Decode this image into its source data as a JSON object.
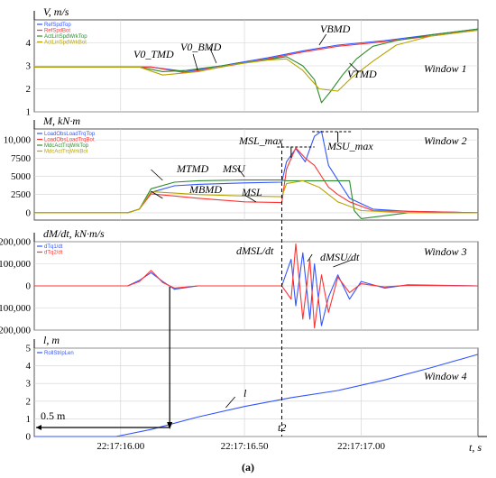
{
  "chart_data": [
    {
      "type": "line",
      "window": "Window 1",
      "ylabel": "V, m/s",
      "ylim": [
        1,
        5
      ],
      "yticks": [
        "1",
        "2",
        "3",
        "4"
      ],
      "legend": [
        {
          "name": "RefSpdTop",
          "color": "#3355ff"
        },
        {
          "name": "RefSpdBot",
          "color": "#ff3333"
        },
        {
          "name": "ActLinSpdWrkTop",
          "color": "#2e8b2e"
        },
        {
          "name": "ActLinSpdWrkBot",
          "color": "#b8a400"
        }
      ],
      "annotations": [
        "V0_TMD",
        "V0_BMD",
        "VBMD",
        "VTMD"
      ],
      "series": [
        {
          "color": "#3355ff",
          "x": [
            15.6,
            16.1,
            16.25,
            16.4,
            16.6,
            16.75,
            16.9,
            17.1,
            17.3,
            17.5
          ],
          "values": [
            2.95,
            2.95,
            2.75,
            3.0,
            3.35,
            3.65,
            3.9,
            4.1,
            4.35,
            4.6
          ]
        },
        {
          "color": "#ff3333",
          "x": [
            15.6,
            16.1,
            16.25,
            16.4,
            16.6,
            16.75,
            16.9,
            17.1,
            17.3,
            17.5
          ],
          "values": [
            2.95,
            2.95,
            2.7,
            2.95,
            3.3,
            3.6,
            3.85,
            4.05,
            4.3,
            4.55
          ]
        },
        {
          "color": "#2e8b2e",
          "x": [
            15.6,
            16.05,
            16.15,
            16.25,
            16.4,
            16.55,
            16.68,
            16.75,
            16.8,
            16.83,
            16.87,
            16.92,
            16.98,
            17.05,
            17.15,
            17.3,
            17.5
          ],
          "values": [
            2.95,
            2.95,
            2.75,
            2.8,
            3.0,
            3.2,
            3.4,
            3.0,
            2.4,
            1.4,
            1.9,
            2.6,
            3.3,
            3.85,
            4.1,
            4.35,
            4.6
          ]
        },
        {
          "color": "#b8a400",
          "x": [
            15.6,
            16.05,
            16.15,
            16.3,
            16.45,
            16.6,
            16.68,
            16.75,
            16.82,
            16.9,
            16.96,
            17.05,
            17.15,
            17.3,
            17.5
          ],
          "values": [
            2.95,
            2.95,
            2.6,
            2.75,
            3.05,
            3.25,
            3.3,
            2.8,
            2.0,
            1.9,
            2.5,
            3.2,
            3.9,
            4.3,
            4.55
          ]
        }
      ]
    },
    {
      "type": "line",
      "window": "Window 2",
      "ylabel": "M, kN·m",
      "ylim": [
        -1000,
        11500
      ],
      "yticks": [
        "0",
        "2500",
        "5000",
        "7500",
        "10,000"
      ],
      "legend": [
        {
          "name": "LoadObsLoadTrqTop",
          "color": "#3355ff"
        },
        {
          "name": "LoadObsLoadTrqBot",
          "color": "#ff3333"
        },
        {
          "name": "MdcActTrqWrkTop",
          "color": "#2e8b2e"
        },
        {
          "name": "MdcActTrqWrkBot",
          "color": "#b8a400"
        }
      ],
      "annotations": [
        "MSL_max",
        "MSU_max",
        "MTMD",
        "MSU",
        "MBMD",
        "MSL"
      ],
      "series": [
        {
          "color": "#3355ff",
          "x": [
            15.6,
            16.0,
            16.05,
            16.1,
            16.2,
            16.3,
            16.5,
            16.66,
            16.68,
            16.72,
            16.76,
            16.8,
            16.83,
            16.86,
            16.9,
            16.95,
            17.05,
            17.2,
            17.35,
            17.5
          ],
          "values": [
            0,
            0,
            500,
            2800,
            3700,
            3900,
            4100,
            4200,
            7000,
            8800,
            7000,
            10500,
            11200,
            6500,
            4500,
            2000,
            500,
            200,
            100,
            0
          ]
        },
        {
          "color": "#ff3333",
          "x": [
            15.6,
            16.0,
            16.05,
            16.1,
            16.2,
            16.3,
            16.5,
            16.66,
            16.68,
            16.72,
            16.76,
            16.8,
            16.83,
            16.86,
            16.9,
            16.95,
            17.05,
            17.2,
            17.35,
            17.5
          ],
          "values": [
            0,
            0,
            500,
            2600,
            2300,
            2000,
            1500,
            1400,
            6000,
            8900,
            7500,
            6500,
            5000,
            3500,
            2500,
            1500,
            300,
            200,
            100,
            0
          ]
        },
        {
          "color": "#2e8b2e",
          "x": [
            15.6,
            16.0,
            16.05,
            16.1,
            16.2,
            16.3,
            16.5,
            16.66,
            16.68,
            16.8,
            16.95,
            16.97,
            17.0,
            17.2,
            17.5
          ],
          "values": [
            0,
            0,
            500,
            3300,
            4200,
            4400,
            4500,
            4500,
            4400,
            4400,
            4400,
            300,
            -800,
            0,
            0
          ]
        },
        {
          "color": "#b8a400",
          "x": [
            15.6,
            16.0,
            16.05,
            16.1,
            16.2,
            16.3,
            16.5,
            16.66,
            16.68,
            16.75,
            16.82,
            16.9,
            17.0,
            17.2,
            17.5
          ],
          "values": [
            0,
            0,
            500,
            2900,
            2700,
            2500,
            2300,
            2200,
            4000,
            4400,
            3500,
            1500,
            300,
            0,
            0
          ]
        }
      ]
    },
    {
      "type": "line",
      "window": "Window 3",
      "ylabel": "dM/dt, kN·m/s",
      "ylim": [
        -200000,
        200000
      ],
      "yticks": [
        "-200,000",
        "-100,000",
        "0",
        "100,000",
        "200,000"
      ],
      "legend": [
        {
          "name": "dTq1/dt",
          "color": "#3355ff"
        },
        {
          "name": "dTq2/dt",
          "color": "#ff3333"
        }
      ],
      "annotations": [
        "dMSL/dt",
        "dMSU/dt"
      ],
      "series": [
        {
          "color": "#3355ff",
          "x": [
            15.6,
            16.0,
            16.05,
            16.1,
            16.15,
            16.2,
            16.3,
            16.5,
            16.66,
            16.7,
            16.72,
            16.75,
            16.78,
            16.8,
            16.83,
            16.86,
            16.9,
            16.95,
            17.0,
            17.1,
            17.2,
            17.5
          ],
          "values": [
            0,
            0,
            25000,
            60000,
            20000,
            -15000,
            0,
            0,
            0,
            120000,
            -90000,
            150000,
            -150000,
            100000,
            -180000,
            -50000,
            50000,
            -60000,
            20000,
            -10000,
            5000,
            0
          ]
        },
        {
          "color": "#ff3333",
          "x": [
            15.6,
            16.0,
            16.05,
            16.1,
            16.15,
            16.2,
            16.3,
            16.5,
            16.66,
            16.7,
            16.72,
            16.75,
            16.78,
            16.8,
            16.83,
            16.86,
            16.9,
            16.95,
            17.0,
            17.1,
            17.2,
            17.5
          ],
          "values": [
            0,
            0,
            20000,
            70000,
            15000,
            -10000,
            0,
            0,
            0,
            -60000,
            190000,
            -150000,
            120000,
            -190000,
            50000,
            -120000,
            40000,
            -30000,
            10000,
            -5000,
            3000,
            0
          ]
        }
      ]
    },
    {
      "type": "line",
      "window": "Window 4",
      "ylabel": "l, m",
      "xlabel": "t, s",
      "ylim": [
        0,
        5
      ],
      "yticks": [
        "0",
        "1",
        "2",
        "3",
        "4",
        "5"
      ],
      "xticks": [
        "22:17:16.00",
        "22:17:16.50",
        "22:17:17.00"
      ],
      "xtick_values": [
        15.97,
        16.5,
        17.0
      ],
      "legend": [
        {
          "name": "RollStripLen",
          "color": "#3355ff"
        }
      ],
      "annotations": [
        "l",
        "0.5 m",
        "t2"
      ],
      "series": [
        {
          "color": "#3355ff",
          "x": [
            15.6,
            15.95,
            16.1,
            16.3,
            16.5,
            16.7,
            16.9,
            17.1,
            17.3,
            17.5
          ],
          "values": [
            0,
            0,
            0.4,
            1.1,
            1.7,
            2.2,
            2.6,
            3.2,
            3.9,
            4.65
          ]
        }
      ]
    }
  ],
  "caption": "(a)",
  "window_labels": [
    "Window 1",
    "Window 2",
    "Window 3",
    "Window 4"
  ],
  "labels": {
    "w1_v0tmd": "V0_TMD",
    "w1_v0bmd": "V0_BMD",
    "w1_vbmd": "VBMD",
    "w1_vtmd": "VTMD",
    "w2_mslmax": "MSL_max",
    "w2_msumax": "MSU_max",
    "w2_mtmd": "MTMD",
    "w2_msu": "MSU",
    "w2_mbmd": "MBMD",
    "w2_msl": "MSL",
    "w3_dmsl": "dMSL/dt",
    "w3_dmsu": "dMSU/dt",
    "w4_l": "l",
    "w4_half": "0.5 m",
    "w4_t2": "t2",
    "xlabel": "t, s"
  }
}
